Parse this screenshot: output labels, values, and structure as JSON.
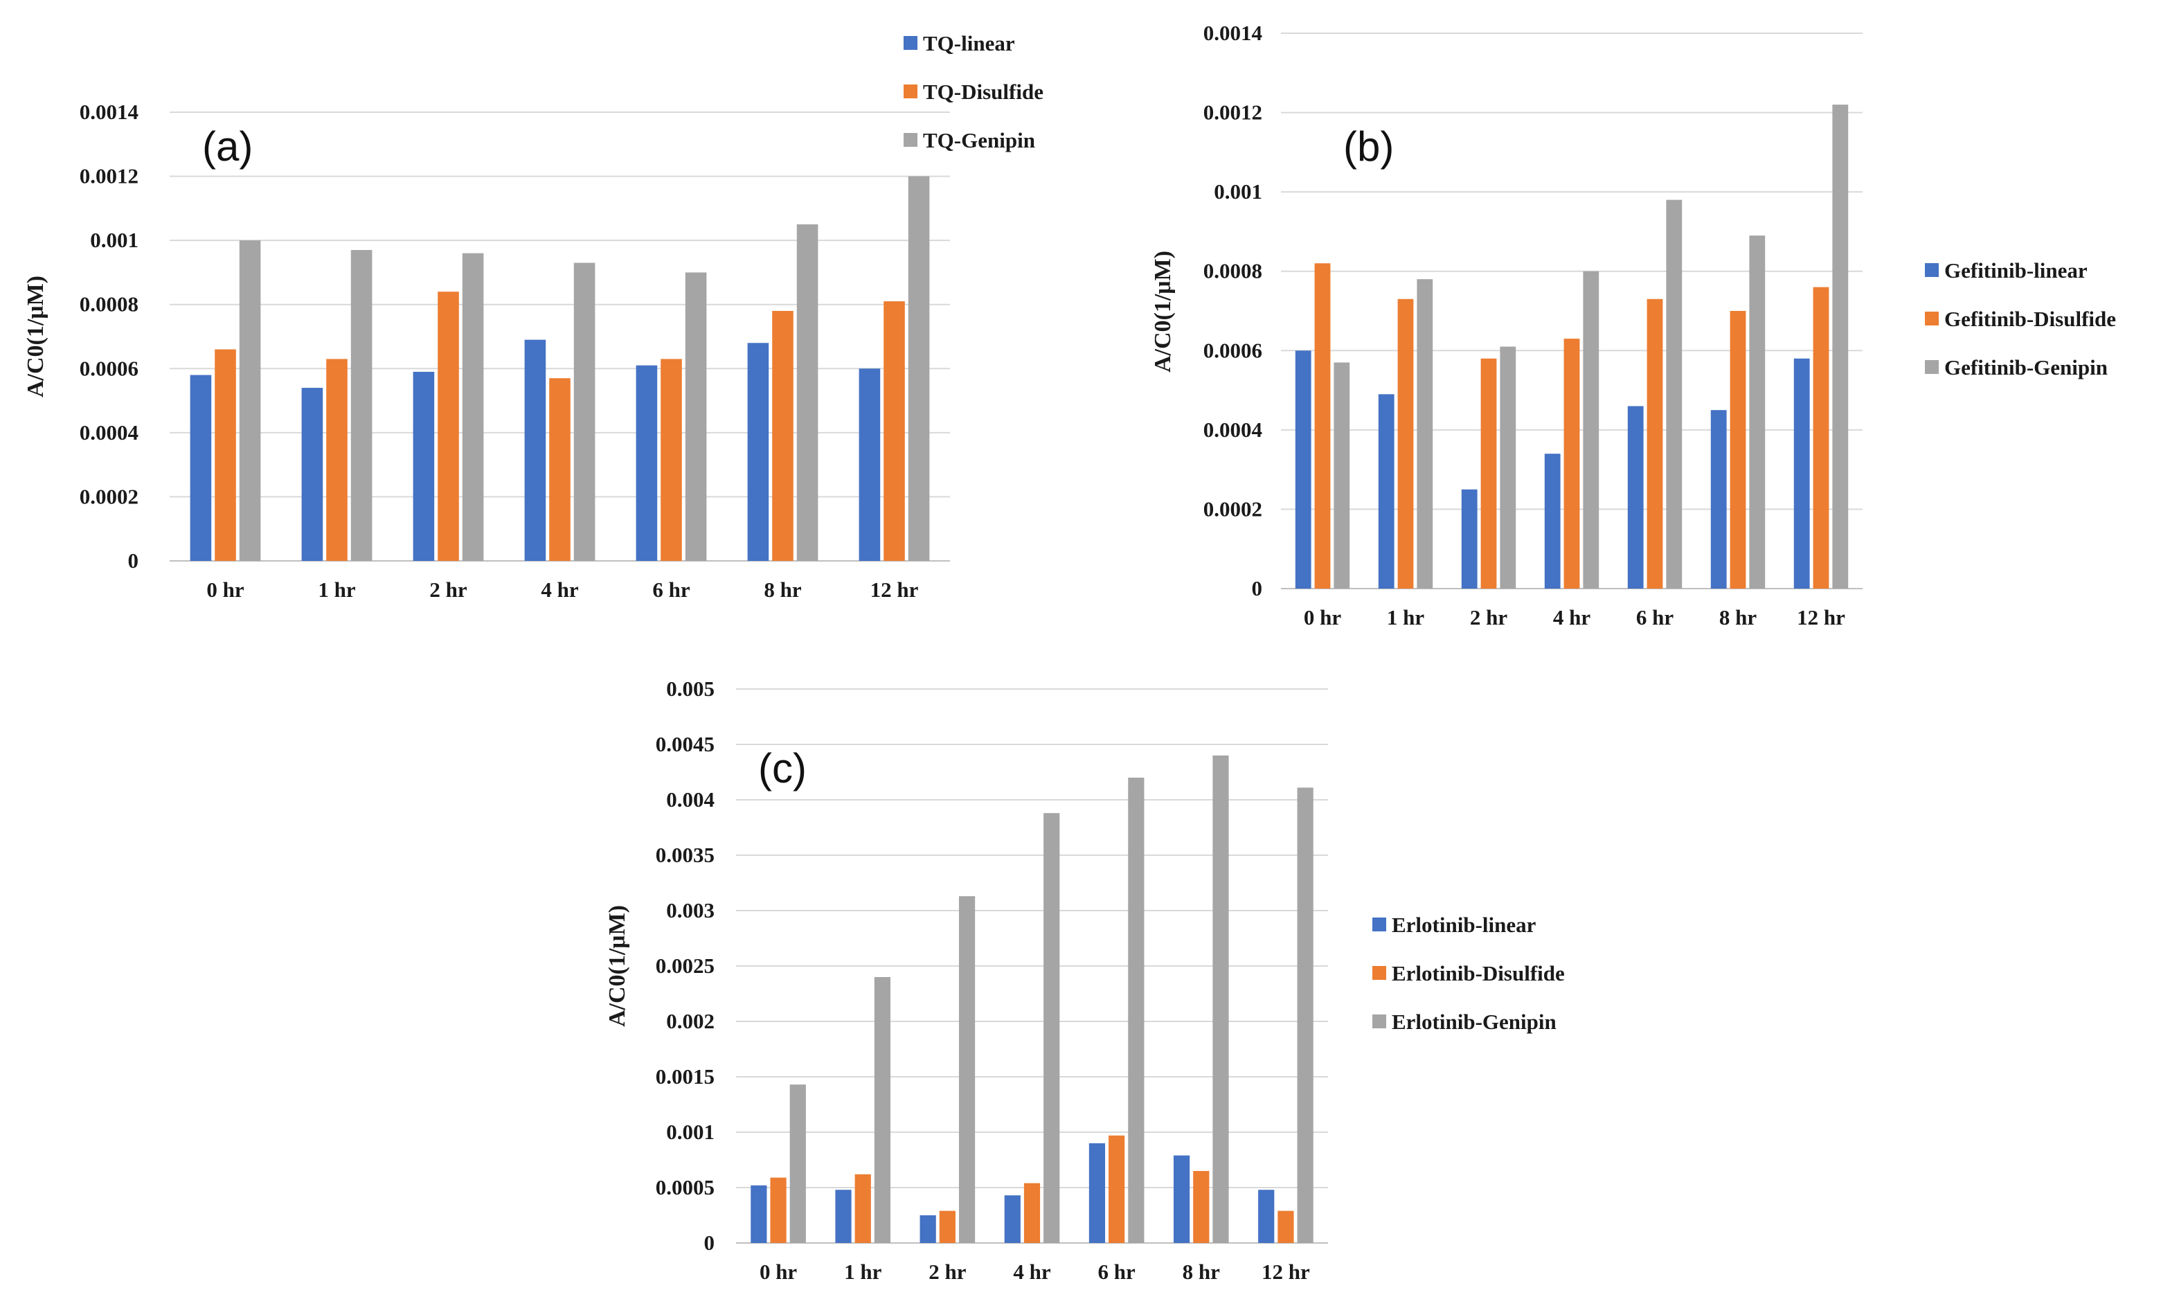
{
  "chart_data": [
    {
      "type": "bar",
      "panel_label": "(a)",
      "title": "",
      "xlabel": "",
      "ylabel": "A/C0(1/μM)",
      "ylim": [
        0,
        0.0014
      ],
      "yticks": [
        "0",
        "0.0002",
        "0.0004",
        "0.0006",
        "0.0008",
        "0.001",
        "0.0012",
        "0.0014"
      ],
      "grid": true,
      "legend_position": "top-right",
      "categories": [
        "0 hr",
        "1 hr",
        "2 hr",
        "4 hr",
        "6 hr",
        "8 hr",
        "12 hr"
      ],
      "series": [
        {
          "name": "TQ-linear",
          "color": "#4472c4",
          "values": [
            0.00058,
            0.00054,
            0.00059,
            0.00069,
            0.00061,
            0.00068,
            0.0006
          ]
        },
        {
          "name": "TQ-Disulfide",
          "color": "#ed7d31",
          "values": [
            0.00066,
            0.00063,
            0.00084,
            0.00057,
            0.00063,
            0.00078,
            0.00081
          ]
        },
        {
          "name": "TQ-Genipin",
          "color": "#a5a5a5",
          "values": [
            0.001,
            0.00097,
            0.00096,
            0.00093,
            0.0009,
            0.00105,
            0.0012
          ]
        }
      ]
    },
    {
      "type": "bar",
      "panel_label": "(b)",
      "title": "",
      "xlabel": "",
      "ylabel": "A/C0(1/μM)",
      "ylim": [
        0,
        0.0014
      ],
      "yticks": [
        "0",
        "0.0002",
        "0.0004",
        "0.0006",
        "0.0008",
        "0.001",
        "0.0012",
        "0.0014"
      ],
      "grid": true,
      "legend_position": "right",
      "categories": [
        "0 hr",
        "1 hr",
        "2 hr",
        "4 hr",
        "6 hr",
        "8 hr",
        "12 hr"
      ],
      "series": [
        {
          "name": "Gefitinib-linear",
          "color": "#4472c4",
          "values": [
            0.0006,
            0.00049,
            0.00025,
            0.00034,
            0.00046,
            0.00045,
            0.00058
          ]
        },
        {
          "name": "Gefitinib-Disulfide",
          "color": "#ed7d31",
          "values": [
            0.00082,
            0.00073,
            0.00058,
            0.00063,
            0.00073,
            0.0007,
            0.00076
          ]
        },
        {
          "name": "Gefitinib-Genipin",
          "color": "#a5a5a5",
          "values": [
            0.00057,
            0.00078,
            0.00061,
            0.0008,
            0.00098,
            0.00089,
            0.00122
          ]
        }
      ]
    },
    {
      "type": "bar",
      "panel_label": "(c)",
      "title": "",
      "xlabel": "",
      "ylabel": "A/C0(1/μM)",
      "ylim": [
        0,
        0.005
      ],
      "yticks": [
        "0",
        "0.0005",
        "0.001",
        "0.0015",
        "0.002",
        "0.0025",
        "0.003",
        "0.0035",
        "0.004",
        "0.0045",
        "0.005"
      ],
      "grid": true,
      "legend_position": "right",
      "categories": [
        "0 hr",
        "1 hr",
        "2 hr",
        "4 hr",
        "6 hr",
        "8 hr",
        "12 hr"
      ],
      "series": [
        {
          "name": "Erlotinib-linear",
          "color": "#4472c4",
          "values": [
            0.00052,
            0.00048,
            0.00025,
            0.00043,
            0.0009,
            0.00079,
            0.00048
          ]
        },
        {
          "name": "Erlotinib-Disulfide",
          "color": "#ed7d31",
          "values": [
            0.00059,
            0.00062,
            0.00029,
            0.00054,
            0.00097,
            0.00065,
            0.00029
          ]
        },
        {
          "name": "Erlotinib-Genipin",
          "color": "#a5a5a5",
          "values": [
            0.00143,
            0.0024,
            0.00313,
            0.00388,
            0.0042,
            0.0044,
            0.00411
          ]
        }
      ]
    }
  ]
}
